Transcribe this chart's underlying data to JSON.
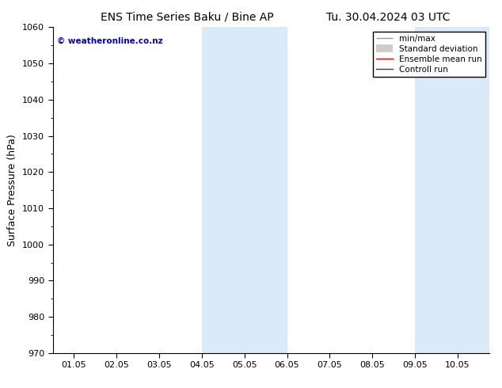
{
  "title_left": "ENS Time Series Baku / Bine AP",
  "title_right": "Tu. 30.04.2024 03 UTC",
  "ylabel": "Surface Pressure (hPa)",
  "ylim": [
    970,
    1060
  ],
  "yticks": [
    970,
    980,
    990,
    1000,
    1010,
    1020,
    1030,
    1040,
    1050,
    1060
  ],
  "xtick_labels": [
    "01.05",
    "02.05",
    "03.05",
    "04.05",
    "05.05",
    "06.05",
    "07.05",
    "08.05",
    "09.05",
    "10.05"
  ],
  "xtick_positions": [
    0,
    1,
    2,
    3,
    4,
    5,
    6,
    7,
    8,
    9
  ],
  "xlim": [
    -0.5,
    9.75
  ],
  "shaded_regions": [
    {
      "x_start": 3.0,
      "x_end": 5.0
    },
    {
      "x_start": 8.0,
      "x_end": 9.75
    }
  ],
  "shaded_color": "#daeaf8",
  "background_color": "#ffffff",
  "watermark_text": "© weatheronline.co.nz",
  "watermark_color": "#0000cc",
  "legend_entries": [
    {
      "label": "min/max"
    },
    {
      "label": "Standard deviation"
    },
    {
      "label": "Ensemble mean run"
    },
    {
      "label": "Controll run"
    }
  ],
  "legend_line_colors": [
    "#999999",
    "#cccccc",
    "#ff0000",
    "#006600"
  ],
  "title_fontsize": 10,
  "tick_fontsize": 8,
  "ylabel_fontsize": 9,
  "legend_fontsize": 7.5
}
